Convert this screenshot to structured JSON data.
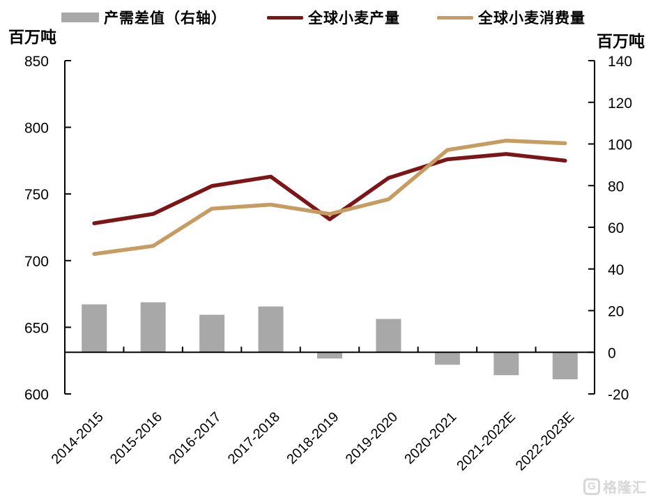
{
  "legend": {
    "items": [
      {
        "label": "产需差值（右轴）",
        "swatch": "bar",
        "color": "#A8A8A8"
      },
      {
        "label": "全球小麦产量",
        "swatch": "line",
        "color": "#7C1517"
      },
      {
        "label": "全球小麦消费量",
        "swatch": "line",
        "color": "#C69C62"
      }
    ]
  },
  "axis_units": {
    "left": "百万吨",
    "right": "百万吨"
  },
  "watermark": {
    "logo_letter": "G",
    "text": "格隆汇",
    "color": "#D7D7D7"
  },
  "chart_data": {
    "type": "combo",
    "title": "",
    "categories": [
      "2014-2015",
      "2015-2016",
      "2016-2017",
      "2017-2018",
      "2018-2019",
      "2019-2020",
      "2020-2021",
      "2021-2022E",
      "2022-2023E"
    ],
    "series": [
      {
        "name": "产需差值（右轴）",
        "type": "bar",
        "axis": "right",
        "color": "#A8A8A8",
        "values": [
          23,
          24,
          18,
          22,
          -3,
          16,
          -6,
          -11,
          -13
        ]
      },
      {
        "name": "全球小麦产量",
        "type": "line",
        "axis": "left",
        "color": "#7C1517",
        "values": [
          728,
          735,
          756,
          763,
          731,
          762,
          776,
          780,
          775
        ]
      },
      {
        "name": "全球小麦消费量",
        "type": "line",
        "axis": "left",
        "color": "#C69C62",
        "values": [
          705,
          711,
          739,
          742,
          735,
          746,
          783,
          790,
          788
        ]
      }
    ],
    "left_axis": {
      "label": "百万吨",
      "min": 600,
      "max": 850,
      "step": 50,
      "ticks": [
        850,
        800,
        750,
        700,
        650,
        600
      ]
    },
    "right_axis": {
      "label": "百万吨",
      "min": -20,
      "max": 140,
      "step": 20,
      "ticks": [
        140,
        120,
        100,
        80,
        60,
        40,
        20,
        0,
        -20
      ]
    },
    "grid": false,
    "legend_position": "top",
    "x_tick_rotation": -45
  }
}
